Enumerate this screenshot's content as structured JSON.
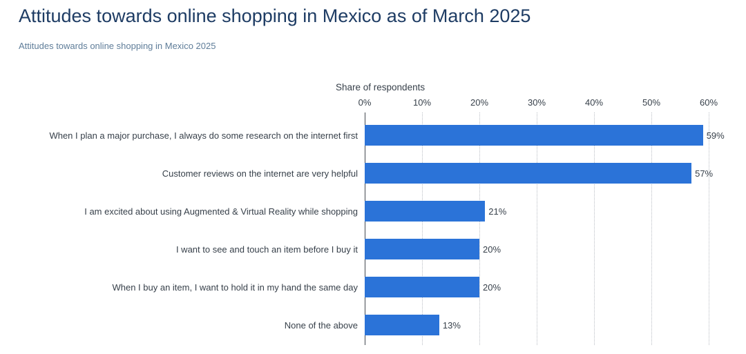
{
  "chart_data": {
    "type": "bar",
    "orientation": "horizontal",
    "title": "Attitudes towards online shopping in Mexico as of March 2025",
    "subtitle": "Attitudes towards online shopping in Mexico 2025",
    "axis_label": "Share of respondents",
    "categories": [
      "When I plan a major purchase, I always do some research on the internet first",
      "Customer reviews on the internet are very helpful",
      "I am excited about using Augmented & Virtual Reality while shopping",
      "I want to see and touch an item before I buy it",
      "When I buy an item, I want to hold it in my hand the same day",
      "None of the above"
    ],
    "values": [
      59,
      57,
      21,
      20,
      20,
      13
    ],
    "value_labels": [
      "59%",
      "57%",
      "21%",
      "20%",
      "20%",
      "13%"
    ],
    "x_ticks": [
      "0%",
      "10%",
      "20%",
      "30%",
      "40%",
      "50%",
      "60%"
    ],
    "xlim": [
      0,
      60
    ],
    "grid": "vertical-dotted",
    "legend": "none",
    "colors": {
      "bar": "#2b73d8",
      "title": "#1e3c64",
      "subtitle": "#5f7d99",
      "text": "#37404a",
      "gridline": "#b9bdc4",
      "axis_line": "#41474f",
      "background": "#ffffff"
    }
  }
}
